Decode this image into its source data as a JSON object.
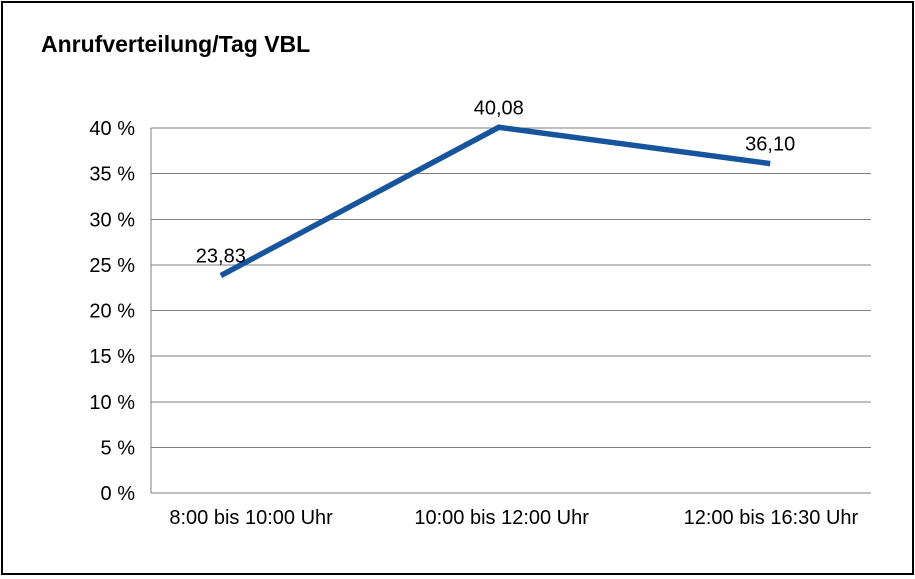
{
  "chart_data": {
    "type": "line",
    "title": "Anrufverteilung/Tag VBL",
    "xlabel": "",
    "ylabel": "",
    "categories": [
      "8:00 bis 10:00 Uhr",
      "10:00 bis 12:00 Uhr",
      "12:00 bis 16:30 Uhr"
    ],
    "values": [
      23.83,
      40.08,
      36.1
    ],
    "data_labels": [
      "23,83",
      "40,08",
      "36,10"
    ],
    "ylim": [
      0,
      40
    ],
    "ytick_values": [
      0,
      5,
      10,
      15,
      20,
      25,
      30,
      35,
      40
    ],
    "ytick_labels": [
      "0 %",
      "5 %",
      "10 %",
      "15 %",
      "20 %",
      "25 %",
      "30 %",
      "35 %",
      "40 %"
    ],
    "grid": true,
    "legend": "none",
    "colors": {
      "line": "#17549e",
      "grid": "#7f7f7f",
      "text": "#000000",
      "border": "#000000",
      "background": "#ffffff"
    }
  }
}
